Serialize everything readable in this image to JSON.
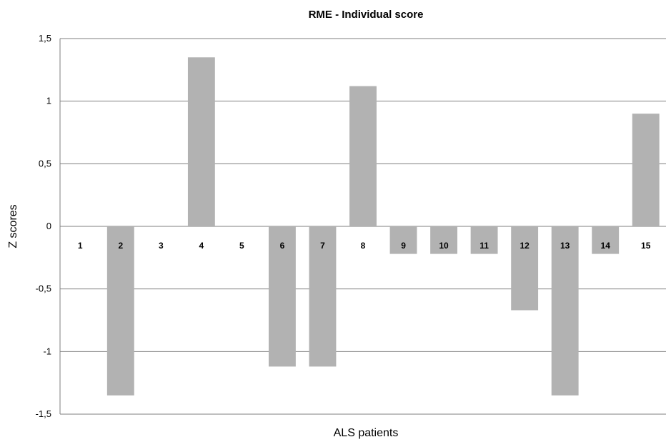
{
  "chart_data": {
    "type": "bar",
    "title": "RME - Individual score",
    "xlabel": "ALS patients",
    "ylabel": "Z scores",
    "categories": [
      "1",
      "2",
      "3",
      "4",
      "5",
      "6",
      "7",
      "8",
      "9",
      "10",
      "11",
      "12",
      "13",
      "14",
      "15"
    ],
    "values": [
      0,
      -1.35,
      0,
      1.35,
      0,
      -1.12,
      -1.12,
      1.12,
      -0.22,
      -0.22,
      -0.22,
      -0.67,
      -1.35,
      -0.22,
      0.9
    ],
    "ylim": [
      -1.5,
      1.5
    ],
    "yticks": [
      1.5,
      1,
      0.5,
      0,
      -0.5,
      -1,
      -1.5
    ],
    "ytick_labels": [
      "1,5",
      "1",
      "0,5",
      "0",
      "-0,5",
      "-1",
      "-1,5"
    ],
    "grid": true,
    "legend": "none",
    "bar_color": "#b2b2b2",
    "grid_color": "#7f7f7f"
  }
}
